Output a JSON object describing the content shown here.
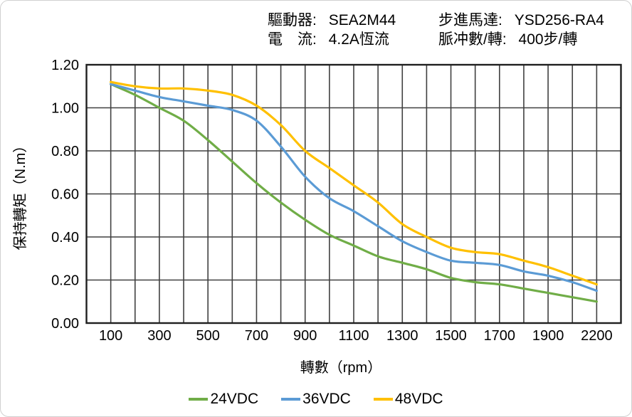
{
  "header": {
    "driver": {
      "label": "驅動器:",
      "value": "SEA2M44"
    },
    "current": {
      "label": "電　流:",
      "value": "4.2A恆流"
    },
    "motor": {
      "label": "步進馬達:",
      "value": "YSD256-RA4"
    },
    "pulses": {
      "label": "脈冲數/轉:",
      "value": "400步/轉"
    }
  },
  "chart_data": {
    "type": "line",
    "x": [
      100,
      200,
      300,
      400,
      500,
      600,
      700,
      800,
      900,
      1000,
      1100,
      1200,
      1300,
      1400,
      1500,
      1600,
      1700,
      1800,
      1900,
      2000,
      2200
    ],
    "series": [
      {
        "name": "24VDC",
        "color": "#70AD47",
        "values": [
          1.11,
          1.06,
          1.0,
          0.94,
          0.85,
          0.75,
          0.65,
          0.56,
          0.48,
          0.41,
          0.36,
          0.31,
          0.28,
          0.25,
          0.21,
          0.19,
          0.18,
          0.16,
          0.14,
          0.12,
          0.1
        ]
      },
      {
        "name": "36VDC",
        "color": "#5B9BD5",
        "values": [
          1.11,
          1.08,
          1.05,
          1.03,
          1.01,
          0.99,
          0.94,
          0.82,
          0.68,
          0.58,
          0.52,
          0.45,
          0.38,
          0.33,
          0.29,
          0.28,
          0.27,
          0.24,
          0.22,
          0.19,
          0.15
        ]
      },
      {
        "name": "48VDC",
        "color": "#FFC000",
        "values": [
          1.12,
          1.1,
          1.09,
          1.09,
          1.08,
          1.06,
          1.01,
          0.92,
          0.8,
          0.72,
          0.64,
          0.56,
          0.46,
          0.4,
          0.35,
          0.33,
          0.32,
          0.29,
          0.26,
          0.22,
          0.18
        ]
      }
    ],
    "xlabel": "轉數（rpm）",
    "ylabel": "保持轉矩（N.m）",
    "ylim": [
      0,
      1.2
    ],
    "ytick_labels": [
      "1.20",
      "1.00",
      "0.80",
      "0.60",
      "0.40",
      "0.20",
      "0.00"
    ],
    "xtick_labels": [
      "100",
      "300",
      "500",
      "700",
      "900",
      "1100",
      "1300",
      "1500",
      "1700",
      "1900",
      "2200"
    ],
    "grid": true,
    "smooth": true,
    "legend_position": "bottom",
    "colors": {
      "gridline": "#404040",
      "plot_border": "#1f1f1f",
      "text": "#000000"
    }
  }
}
